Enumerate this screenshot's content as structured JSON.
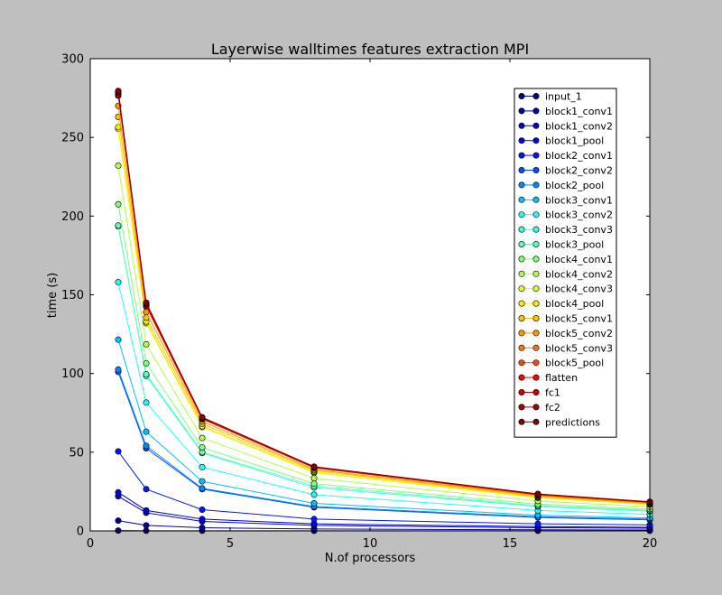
{
  "chart_data": {
    "type": "line",
    "title": "Layerwise walltimes features extraction MPI",
    "xlabel": "N.of processors",
    "ylabel": "time (s)",
    "xlim": [
      0,
      20
    ],
    "ylim": [
      0,
      300
    ],
    "xticks": [
      0,
      5,
      10,
      15,
      20
    ],
    "yticks": [
      0,
      50,
      100,
      150,
      200,
      250,
      300
    ],
    "grid": false,
    "legend_position": "top-right",
    "x": [
      1,
      2,
      4,
      8,
      16,
      20
    ],
    "series": [
      {
        "name": "input_1",
        "color": "#00007f",
        "values": [
          0.2,
          0.1,
          0.1,
          0.05,
          0.05,
          0.05
        ]
      },
      {
        "name": "block1_conv1",
        "color": "#00009f",
        "values": [
          6.5,
          3.5,
          2.0,
          1.2,
          0.7,
          0.6
        ]
      },
      {
        "name": "block1_conv2",
        "color": "#0000c8",
        "values": [
          22.0,
          11.5,
          6.0,
          3.5,
          2.0,
          1.7
        ]
      },
      {
        "name": "block1_pool",
        "color": "#0000f1",
        "values": [
          24.5,
          13.0,
          7.5,
          4.5,
          2.7,
          2.3
        ]
      },
      {
        "name": "block2_conv1",
        "color": "#0018ff",
        "values": [
          50.5,
          26.5,
          13.5,
          7.5,
          4.5,
          3.8
        ]
      },
      {
        "name": "block2_conv2",
        "color": "#0050ff",
        "values": [
          101.0,
          52.5,
          26.5,
          15.0,
          8.5,
          7.0
        ]
      },
      {
        "name": "block2_pool",
        "color": "#0088ff",
        "values": [
          102.5,
          54.0,
          27.0,
          15.5,
          9.0,
          7.5
        ]
      },
      {
        "name": "block3_conv1",
        "color": "#00c0ff",
        "values": [
          121.5,
          63.0,
          31.5,
          17.5,
          10.0,
          8.2
        ]
      },
      {
        "name": "block3_conv2",
        "color": "#1cfff9",
        "values": [
          158.0,
          81.5,
          40.5,
          23.0,
          13.0,
          10.5
        ]
      },
      {
        "name": "block3_conv3",
        "color": "#3cffda",
        "values": [
          193.5,
          98.5,
          49.5,
          27.5,
          15.5,
          12.5
        ]
      },
      {
        "name": "block3_pool",
        "color": "#5effba",
        "values": [
          194.0,
          99.5,
          50.0,
          28.5,
          16.0,
          13.0
        ]
      },
      {
        "name": "block4_conv1",
        "color": "#7cff79",
        "values": [
          207.5,
          106.5,
          53.0,
          30.0,
          17.0,
          13.8
        ]
      },
      {
        "name": "block4_conv2",
        "color": "#aeff49",
        "values": [
          232.0,
          118.5,
          59.0,
          33.5,
          19.0,
          15.3
        ]
      },
      {
        "name": "block4_conv3",
        "color": "#dbff1c",
        "values": [
          255.5,
          132.0,
          66.0,
          37.0,
          21.0,
          16.7
        ]
      },
      {
        "name": "block4_pool",
        "color": "#ffeb00",
        "values": [
          256.5,
          133.0,
          66.5,
          37.5,
          21.3,
          16.9
        ]
      },
      {
        "name": "block5_conv1",
        "color": "#ffc400",
        "values": [
          263.0,
          135.5,
          68.0,
          38.3,
          21.8,
          17.2
        ]
      },
      {
        "name": "block5_conv2",
        "color": "#ff9800",
        "values": [
          270.0,
          139.0,
          69.5,
          39.0,
          22.3,
          17.6
        ]
      },
      {
        "name": "block5_conv3",
        "color": "#ff7400",
        "values": [
          276.5,
          142.5,
          71.0,
          40.0,
          22.8,
          18.0
        ]
      },
      {
        "name": "block5_pool",
        "color": "#ff4800",
        "values": [
          277.0,
          143.0,
          71.3,
          40.2,
          23.0,
          18.1
        ]
      },
      {
        "name": "flatten",
        "color": "#f10800",
        "values": [
          277.5,
          143.3,
          71.5,
          40.3,
          23.1,
          18.2
        ]
      },
      {
        "name": "fc1",
        "color": "#c80000",
        "values": [
          278.5,
          144.0,
          71.8,
          40.5,
          23.3,
          18.3
        ]
      },
      {
        "name": "fc2",
        "color": "#a00000",
        "values": [
          279.0,
          144.5,
          72.0,
          40.7,
          23.4,
          18.4
        ]
      },
      {
        "name": "predictions",
        "color": "#7f0000",
        "values": [
          279.5,
          145.0,
          72.2,
          40.8,
          23.5,
          18.5
        ]
      }
    ]
  }
}
